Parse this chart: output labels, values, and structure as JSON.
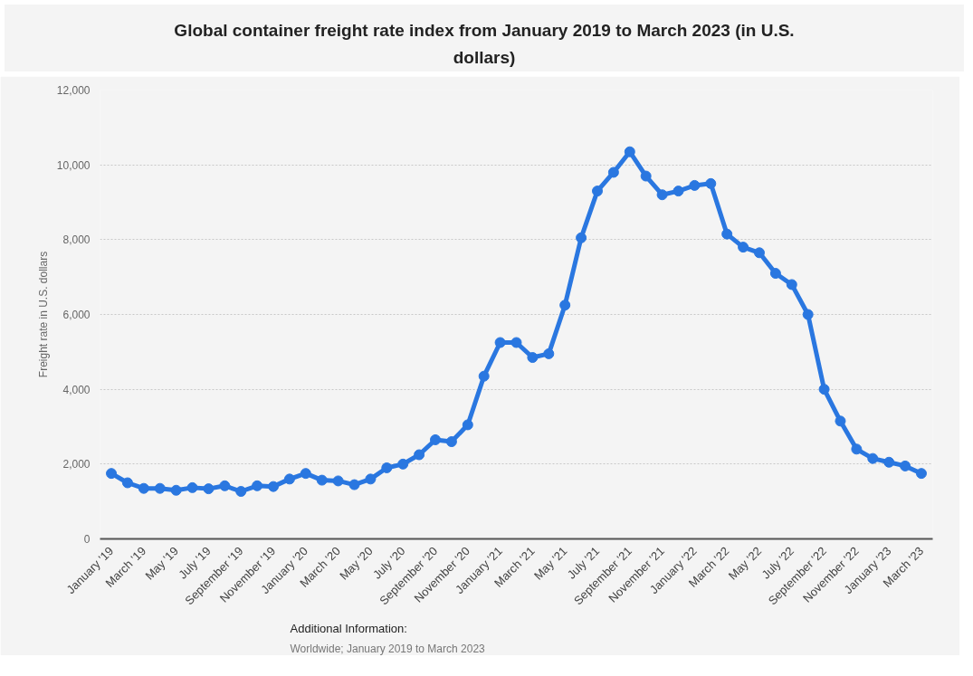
{
  "chart_data": {
    "type": "line",
    "title": "Global container freight rate index from January 2019 to March 2023 (in U.S. dollars)",
    "ylabel": "Freight rate in U.S. dollars",
    "categories": [
      "January '19",
      null,
      "March '19",
      null,
      "May '19",
      null,
      "July '19",
      null,
      "September '19",
      null,
      "November '19",
      null,
      "January '20",
      null,
      "March '20",
      null,
      "May '20",
      null,
      "July '20",
      null,
      "September '20",
      null,
      "November '20",
      null,
      "January '21",
      null,
      "March '21",
      null,
      "May '21",
      null,
      "July '21",
      null,
      "September '21",
      null,
      "November '21",
      null,
      "January '22",
      null,
      "March '22",
      null,
      "May '22",
      null,
      "July '22",
      null,
      "September '22",
      null,
      "November '22",
      null,
      "January '23",
      null,
      "March '23"
    ],
    "series": [
      {
        "color": "#2a77e0",
        "values": [
          1750,
          1500,
          1350,
          1350,
          1300,
          1370,
          1340,
          1420,
          1270,
          1420,
          1400,
          1600,
          1750,
          1570,
          1550,
          1450,
          1600,
          1900,
          2000,
          2250,
          2650,
          2600,
          3050,
          4350,
          5250,
          5250,
          4850,
          4950,
          6250,
          8050,
          9300,
          9800,
          10350,
          9700,
          9200,
          9300,
          9450,
          9500,
          8150,
          7800,
          7650,
          7100,
          6800,
          6000,
          4000,
          3150,
          2400,
          2150,
          2050,
          1950,
          1750
        ]
      }
    ],
    "ylim": [
      0,
      12000
    ],
    "yticks": [
      {
        "value": 0,
        "label": "0"
      },
      {
        "value": 2000,
        "label": "2,000"
      },
      {
        "value": 4000,
        "label": "4,000"
      },
      {
        "value": 6000,
        "label": "6,000"
      },
      {
        "value": 8000,
        "label": "8,000"
      },
      {
        "value": 10000,
        "label": "10,000"
      },
      {
        "value": 12000,
        "label": "12,000"
      }
    ],
    "grid": "y",
    "marker": "circle",
    "line_style": "solid",
    "annotations": [
      "Additional Information:",
      "Worldwide; January 2019 to March 2023"
    ]
  }
}
